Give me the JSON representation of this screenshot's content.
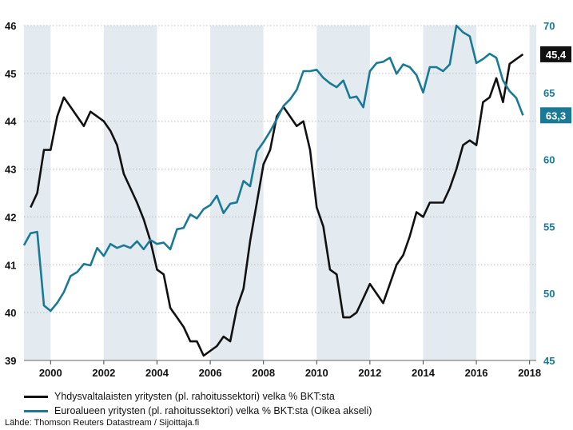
{
  "chart_data": {
    "type": "line",
    "x_ticks": [
      "2000",
      "2002",
      "2004",
      "2006",
      "2008",
      "2010",
      "2012",
      "2014",
      "2016",
      "2018"
    ],
    "left_axis": {
      "ticks": [
        "39",
        "40",
        "41",
        "42",
        "43",
        "44",
        "45",
        "46"
      ],
      "min": 39,
      "max": 46
    },
    "right_axis": {
      "ticks": [
        "45",
        "50",
        "55",
        "60",
        "65",
        "70"
      ],
      "min": 45,
      "max": 70
    },
    "shaded_periods": [
      [
        1999.0,
        2000.0
      ],
      [
        2002.0,
        2004.0
      ],
      [
        2006.0,
        2008.0
      ],
      [
        2010.0,
        2012.0
      ],
      [
        2014.0,
        2016.0
      ],
      [
        2018.0,
        2018.25
      ]
    ],
    "series": [
      {
        "name": "Yhdysvaltalaisten yritysten (pl. rahoitussektori) velka % BKT:sta",
        "axis": "left",
        "color": "#111111",
        "end_label": "45,4",
        "points": [
          [
            1999.25,
            42.2
          ],
          [
            1999.5,
            42.5
          ],
          [
            1999.75,
            43.4
          ],
          [
            2000.0,
            43.4
          ],
          [
            2000.25,
            44.1
          ],
          [
            2000.5,
            44.5
          ],
          [
            2000.75,
            44.3
          ],
          [
            2001.0,
            44.1
          ],
          [
            2001.25,
            43.9
          ],
          [
            2001.5,
            44.2
          ],
          [
            2001.75,
            44.1
          ],
          [
            2002.0,
            44.0
          ],
          [
            2002.25,
            43.8
          ],
          [
            2002.5,
            43.5
          ],
          [
            2002.75,
            42.9
          ],
          [
            2003.0,
            42.6
          ],
          [
            2003.25,
            42.3
          ],
          [
            2003.5,
            41.95
          ],
          [
            2003.75,
            41.5
          ],
          [
            2004.0,
            40.9
          ],
          [
            2004.25,
            40.8
          ],
          [
            2004.5,
            40.1
          ],
          [
            2004.75,
            39.9
          ],
          [
            2005.0,
            39.7
          ],
          [
            2005.25,
            39.4
          ],
          [
            2005.5,
            39.4
          ],
          [
            2005.75,
            39.1
          ],
          [
            2006.0,
            39.2
          ],
          [
            2006.25,
            39.3
          ],
          [
            2006.5,
            39.5
          ],
          [
            2006.75,
            39.4
          ],
          [
            2007.0,
            40.1
          ],
          [
            2007.25,
            40.5
          ],
          [
            2007.5,
            41.5
          ],
          [
            2007.75,
            42.3
          ],
          [
            2008.0,
            43.1
          ],
          [
            2008.25,
            43.4
          ],
          [
            2008.5,
            44.1
          ],
          [
            2008.75,
            44.3
          ],
          [
            2009.0,
            44.1
          ],
          [
            2009.25,
            43.9
          ],
          [
            2009.5,
            44.0
          ],
          [
            2009.75,
            43.4
          ],
          [
            2010.0,
            42.2
          ],
          [
            2010.25,
            41.8
          ],
          [
            2010.5,
            40.9
          ],
          [
            2010.75,
            40.8
          ],
          [
            2011.0,
            39.9
          ],
          [
            2011.25,
            39.9
          ],
          [
            2011.5,
            40.0
          ],
          [
            2011.75,
            40.3
          ],
          [
            2012.0,
            40.6
          ],
          [
            2012.25,
            40.4
          ],
          [
            2012.5,
            40.2
          ],
          [
            2012.75,
            40.6
          ],
          [
            2013.0,
            41.0
          ],
          [
            2013.25,
            41.2
          ],
          [
            2013.5,
            41.6
          ],
          [
            2013.75,
            42.1
          ],
          [
            2014.0,
            42.0
          ],
          [
            2014.25,
            42.3
          ],
          [
            2014.5,
            42.3
          ],
          [
            2014.75,
            42.3
          ],
          [
            2015.0,
            42.6
          ],
          [
            2015.25,
            43.0
          ],
          [
            2015.5,
            43.5
          ],
          [
            2015.75,
            43.6
          ],
          [
            2016.0,
            43.5
          ],
          [
            2016.25,
            44.4
          ],
          [
            2016.5,
            44.5
          ],
          [
            2016.75,
            44.9
          ],
          [
            2017.0,
            44.4
          ],
          [
            2017.25,
            45.2
          ],
          [
            2017.5,
            45.3
          ],
          [
            2017.75,
            45.4
          ]
        ]
      },
      {
        "name": "Euroalueen yritysten (pl. rahoitussektori) velka % BKT:sta (Oikea akseli)",
        "axis": "right",
        "color": "#1a7a96",
        "end_label": "63,3",
        "points": [
          [
            1999.0,
            53.6
          ],
          [
            1999.25,
            54.5
          ],
          [
            1999.5,
            54.6
          ],
          [
            1999.75,
            49.1
          ],
          [
            2000.0,
            48.7
          ],
          [
            2000.25,
            49.3
          ],
          [
            2000.5,
            50.1
          ],
          [
            2000.75,
            51.3
          ],
          [
            2001.0,
            51.6
          ],
          [
            2001.25,
            52.2
          ],
          [
            2001.5,
            52.1
          ],
          [
            2001.75,
            53.4
          ],
          [
            2002.0,
            52.8
          ],
          [
            2002.25,
            53.7
          ],
          [
            2002.5,
            53.4
          ],
          [
            2002.75,
            53.6
          ],
          [
            2003.0,
            53.4
          ],
          [
            2003.25,
            53.9
          ],
          [
            2003.5,
            53.3
          ],
          [
            2003.75,
            54.0
          ],
          [
            2004.0,
            53.7
          ],
          [
            2004.25,
            53.8
          ],
          [
            2004.5,
            53.3
          ],
          [
            2004.75,
            54.8
          ],
          [
            2005.0,
            54.9
          ],
          [
            2005.25,
            55.9
          ],
          [
            2005.5,
            55.6
          ],
          [
            2005.75,
            56.3
          ],
          [
            2006.0,
            56.6
          ],
          [
            2006.25,
            57.3
          ],
          [
            2006.5,
            56.0
          ],
          [
            2006.75,
            56.7
          ],
          [
            2007.0,
            56.8
          ],
          [
            2007.25,
            58.4
          ],
          [
            2007.5,
            58.0
          ],
          [
            2007.75,
            60.6
          ],
          [
            2008.0,
            61.3
          ],
          [
            2008.25,
            62.1
          ],
          [
            2008.5,
            63.0
          ],
          [
            2008.75,
            64.0
          ],
          [
            2009.0,
            64.5
          ],
          [
            2009.25,
            65.2
          ],
          [
            2009.5,
            66.6
          ],
          [
            2009.75,
            66.6
          ],
          [
            2010.0,
            66.7
          ],
          [
            2010.25,
            66.1
          ],
          [
            2010.5,
            65.7
          ],
          [
            2010.75,
            65.4
          ],
          [
            2011.0,
            65.9
          ],
          [
            2011.25,
            64.6
          ],
          [
            2011.5,
            64.7
          ],
          [
            2011.75,
            63.9
          ],
          [
            2012.0,
            66.6
          ],
          [
            2012.25,
            67.2
          ],
          [
            2012.5,
            67.3
          ],
          [
            2012.75,
            67.6
          ],
          [
            2013.0,
            66.4
          ],
          [
            2013.25,
            67.1
          ],
          [
            2013.5,
            66.9
          ],
          [
            2013.75,
            66.3
          ],
          [
            2014.0,
            65.0
          ],
          [
            2014.25,
            66.9
          ],
          [
            2014.5,
            66.9
          ],
          [
            2014.75,
            66.6
          ],
          [
            2015.0,
            67.1
          ],
          [
            2015.25,
            70.0
          ],
          [
            2015.5,
            69.5
          ],
          [
            2015.75,
            69.2
          ],
          [
            2016.0,
            67.2
          ],
          [
            2016.25,
            67.5
          ],
          [
            2016.5,
            67.9
          ],
          [
            2016.75,
            67.6
          ],
          [
            2017.0,
            65.9
          ],
          [
            2017.25,
            65.1
          ],
          [
            2017.5,
            64.6
          ],
          [
            2017.75,
            63.3
          ]
        ]
      }
    ]
  },
  "legend": [
    {
      "label": "Yhdysvaltalaisten yritysten (pl. rahoitussektori) velka % BKT:sta",
      "color": "#111111"
    },
    {
      "label": "Euroalueen yritysten (pl. rahoitussektori) velka % BKT:sta (Oikea akseli)",
      "color": "#1a7a96"
    }
  ],
  "source": "Lähde: Thomson Reuters Datastream / Sijoittaja.fi"
}
